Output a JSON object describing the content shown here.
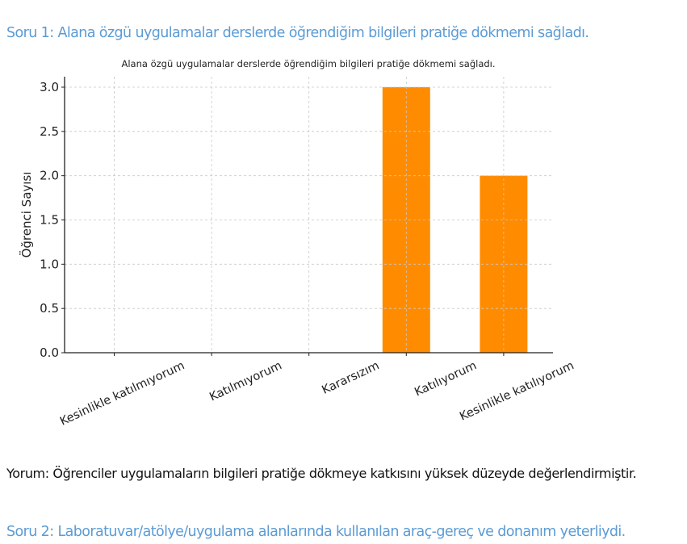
{
  "document": {
    "question1_heading": "Soru 1: Alana özgü uygulamalar derslerde öğrendiğim bilgileri pratiğe dökmemi sağladı.",
    "comment": "Yorum: Öğrenciler uygulamaların bilgileri pratiğe dökmeye katkısını yüksek düzeyde değerlendirmiştir.",
    "question2_heading": "Soru 2: Laboratuvar/atölye/uygulama alanlarında kullanılan araç-gereç ve donanım yeterliydi.",
    "heading_color": "#5b9bd5"
  },
  "chart_data": {
    "type": "bar",
    "title": "Alana özgü uygulamalar derslerde öğrendiğim bilgileri pratiğe dökmemi sağladı.",
    "xlabel": "",
    "ylabel": "Öğrenci Sayısı",
    "categories": [
      "Kesinlikle katılmıyorum",
      "Katılmıyorum",
      "Kararsızım",
      "Katılıyorum",
      "Kesinlikle katılıyorum"
    ],
    "values": [
      0,
      0,
      0,
      3,
      2
    ],
    "ylim": [
      0,
      3.15
    ],
    "yticks": [
      "0.0",
      "0.5",
      "1.0",
      "1.5",
      "2.0",
      "2.5",
      "3.0"
    ],
    "grid": true,
    "legend": null,
    "bar_color": "#ff8c00",
    "xtick_rotation": 25
  }
}
